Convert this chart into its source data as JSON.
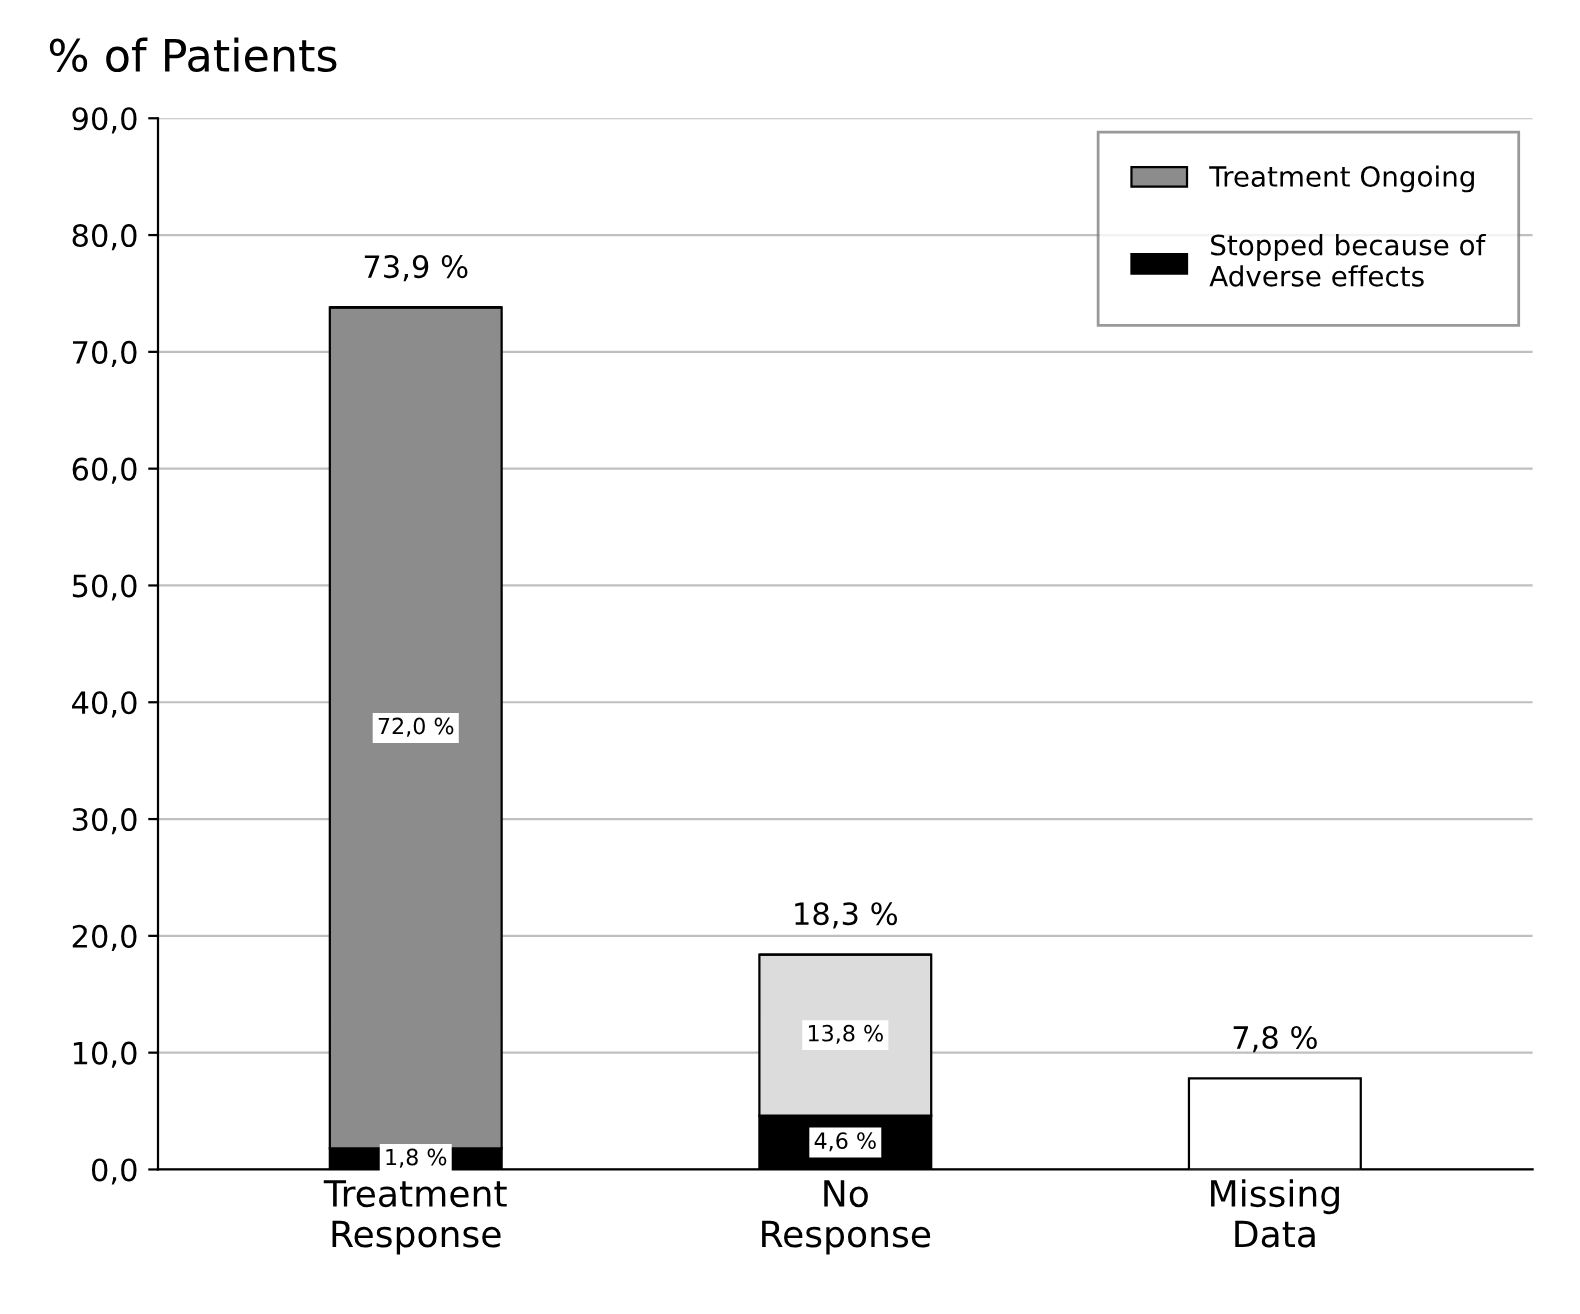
{
  "chart_data": {
    "type": "bar",
    "title": "% of Patients",
    "stacked": true,
    "categories": [
      "Treatment\nResponse",
      "No\nResponse",
      "Missing\nData"
    ],
    "series": [
      {
        "name": "Stopped because of\nAdverse effects",
        "color": "#000000",
        "values": [
          1.8,
          4.6,
          null
        ],
        "value_labels": [
          "1,8 %",
          "4,6 %",
          null
        ]
      },
      {
        "name": "Treatment Ongoing",
        "color": "#8c8c8c",
        "values": [
          72.0,
          null,
          null
        ],
        "value_labels": [
          "72,0 %",
          null,
          null
        ]
      },
      {
        "color": "#dcdcdc",
        "values": [
          null,
          13.8,
          null
        ],
        "value_labels": [
          null,
          "13,8 %",
          null
        ]
      },
      {
        "color": "#ffffff",
        "values": [
          null,
          null,
          7.8
        ]
      }
    ],
    "totals": [
      "73,9 %",
      "18,3 %",
      "7,8 %"
    ],
    "ylim": [
      0,
      90
    ],
    "yticks": [
      {
        "value": 0,
        "label": "0,0"
      },
      {
        "value": 10,
        "label": "10,0"
      },
      {
        "value": 20,
        "label": "20,0"
      },
      {
        "value": 30,
        "label": "30,0"
      },
      {
        "value": 40,
        "label": "40,0"
      },
      {
        "value": 50,
        "label": "50,0"
      },
      {
        "value": 60,
        "label": "60,0"
      },
      {
        "value": 70,
        "label": "70,0"
      },
      {
        "value": 80,
        "label": "80,0"
      },
      {
        "value": 90,
        "label": "90,0"
      }
    ],
    "grid": "y",
    "legend": "top right"
  }
}
